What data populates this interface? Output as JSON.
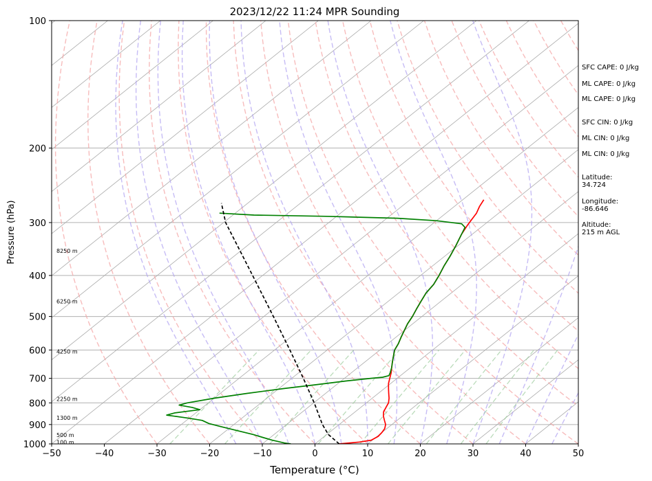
{
  "chart_data": {
    "type": "line",
    "title": "2023/12/22 11:24 MPR Sounding",
    "xlabel": "Temperature (°C)",
    "ylabel": "Pressure (hPa)",
    "xlim": [
      -50,
      50
    ],
    "ylim": [
      1000,
      100
    ],
    "yscale": "log",
    "skew": "skew-T log-P",
    "x_ticks": [
      "−50",
      "−40",
      "−30",
      "−20",
      "−10",
      "0",
      "10",
      "20",
      "30",
      "40",
      "50"
    ],
    "y_ticks": [
      {
        "p": 100,
        "label": "100"
      },
      {
        "p": 200,
        "label": "200"
      },
      {
        "p": 300,
        "label": "300"
      },
      {
        "p": 400,
        "label": "400"
      },
      {
        "p": 500,
        "label": "500"
      },
      {
        "p": 600,
        "label": "600"
      },
      {
        "p": 700,
        "label": "700"
      },
      {
        "p": 800,
        "label": "800"
      },
      {
        "p": 900,
        "label": "900"
      },
      {
        "p": 1000,
        "label": "1000"
      }
    ],
    "grid": true,
    "height_labels": [
      {
        "p": 350,
        "label": "8250 m"
      },
      {
        "p": 460,
        "label": "6250 m"
      },
      {
        "p": 605,
        "label": "4250 m"
      },
      {
        "p": 783,
        "label": "2250 m"
      },
      {
        "p": 867,
        "label": "1300 m"
      },
      {
        "p": 953,
        "label": "500 m"
      },
      {
        "p": 990,
        "label": "100 m"
      }
    ],
    "series": [
      {
        "color": "#ff0000",
        "points": [
          {
            "p": 265,
            "t": -26.0
          },
          {
            "p": 275,
            "t": -25.2
          },
          {
            "p": 285,
            "t": -24.2
          },
          {
            "p": 295,
            "t": -23.6
          },
          {
            "p": 305,
            "t": -23.0
          },
          {
            "p": 320,
            "t": -22.0
          },
          {
            "p": 340,
            "t": -20.4
          },
          {
            "p": 360,
            "t": -19.0
          },
          {
            "p": 380,
            "t": -17.8
          },
          {
            "p": 400,
            "t": -16.5
          },
          {
            "p": 420,
            "t": -15.4
          },
          {
            "p": 440,
            "t": -14.8
          },
          {
            "p": 460,
            "t": -13.8
          },
          {
            "p": 480,
            "t": -12.8
          },
          {
            "p": 500,
            "t": -11.8
          },
          {
            "p": 520,
            "t": -11.0
          },
          {
            "p": 540,
            "t": -10.0
          },
          {
            "p": 560,
            "t": -9.0
          },
          {
            "p": 580,
            "t": -8.0
          },
          {
            "p": 600,
            "t": -7.2
          },
          {
            "p": 620,
            "t": -6.0
          },
          {
            "p": 640,
            "t": -4.8
          },
          {
            "p": 660,
            "t": -3.6
          },
          {
            "p": 680,
            "t": -2.4
          },
          {
            "p": 700,
            "t": -1.4
          },
          {
            "p": 720,
            "t": -0.4
          },
          {
            "p": 740,
            "t": 0.8
          },
          {
            "p": 760,
            "t": 2.0
          },
          {
            "p": 780,
            "t": 3.2
          },
          {
            "p": 800,
            "t": 4.2
          },
          {
            "p": 820,
            "t": 4.8
          },
          {
            "p": 840,
            "t": 5.4
          },
          {
            "p": 860,
            "t": 6.4
          },
          {
            "p": 880,
            "t": 7.6
          },
          {
            "p": 900,
            "t": 8.8
          },
          {
            "p": 920,
            "t": 9.6
          },
          {
            "p": 940,
            "t": 10.0
          },
          {
            "p": 960,
            "t": 10.2
          },
          {
            "p": 980,
            "t": 9.8
          },
          {
            "p": 990,
            "t": 8.0
          },
          {
            "p": 1000,
            "t": 4.6
          }
        ]
      },
      {
        "color": "#008000",
        "points": [
          {
            "p": 285,
            "t": -73.0
          },
          {
            "p": 288,
            "t": -66.0
          },
          {
            "p": 290,
            "t": -52.0
          },
          {
            "p": 293,
            "t": -38.0
          },
          {
            "p": 297,
            "t": -30.0
          },
          {
            "p": 302,
            "t": -24.5
          },
          {
            "p": 308,
            "t": -23.0
          },
          {
            "p": 320,
            "t": -22.0
          },
          {
            "p": 340,
            "t": -20.4
          },
          {
            "p": 360,
            "t": -19.0
          },
          {
            "p": 380,
            "t": -17.8
          },
          {
            "p": 400,
            "t": -16.5
          },
          {
            "p": 420,
            "t": -15.4
          },
          {
            "p": 440,
            "t": -14.8
          },
          {
            "p": 460,
            "t": -13.8
          },
          {
            "p": 480,
            "t": -12.8
          },
          {
            "p": 500,
            "t": -11.8
          },
          {
            "p": 520,
            "t": -11.0
          },
          {
            "p": 540,
            "t": -10.0
          },
          {
            "p": 560,
            "t": -9.0
          },
          {
            "p": 580,
            "t": -8.0
          },
          {
            "p": 600,
            "t": -7.2
          },
          {
            "p": 620,
            "t": -6.0
          },
          {
            "p": 640,
            "t": -4.8
          },
          {
            "p": 660,
            "t": -3.6
          },
          {
            "p": 680,
            "t": -2.6
          },
          {
            "p": 690,
            "t": -2.2
          },
          {
            "p": 696,
            "t": -3.0
          },
          {
            "p": 700,
            "t": -5.0
          },
          {
            "p": 710,
            "t": -9.0
          },
          {
            "p": 725,
            "t": -14.0
          },
          {
            "p": 740,
            "t": -19.0
          },
          {
            "p": 760,
            "t": -25.0
          },
          {
            "p": 780,
            "t": -30.0
          },
          {
            "p": 800,
            "t": -34.0
          },
          {
            "p": 810,
            "t": -35.0
          },
          {
            "p": 820,
            "t": -32.0
          },
          {
            "p": 830,
            "t": -30.0
          },
          {
            "p": 845,
            "t": -34.0
          },
          {
            "p": 855,
            "t": -35.0
          },
          {
            "p": 870,
            "t": -30.0
          },
          {
            "p": 880,
            "t": -27.0
          },
          {
            "p": 895,
            "t": -25.0
          },
          {
            "p": 910,
            "t": -22.0
          },
          {
            "p": 930,
            "t": -18.0
          },
          {
            "p": 950,
            "t": -14.0
          },
          {
            "p": 965,
            "t": -11.5
          },
          {
            "p": 980,
            "t": -9.0
          },
          {
            "p": 995,
            "t": -6.0
          },
          {
            "p": 1000,
            "t": -4.6
          }
        ]
      },
      {
        "color": "#000000",
        "dashed": true,
        "points": [
          {
            "p": 1000,
            "t": 4.6
          },
          {
            "p": 950,
            "t": 0.3
          },
          {
            "p": 900,
            "t": -3.2
          },
          {
            "p": 800,
            "t": -9.9
          },
          {
            "p": 700,
            "t": -17.8
          },
          {
            "p": 600,
            "t": -27.1
          },
          {
            "p": 500,
            "t": -38.2
          },
          {
            "p": 400,
            "t": -51.9
          },
          {
            "p": 300,
            "t": -69.6
          },
          {
            "p": 270,
            "t": -75.0
          }
        ]
      }
    ],
    "annotations": [
      "SFC CAPE: 0 J/kg",
      "ML CAPE: 0 J/kg",
      "ML CAPE: 0 J/kg",
      "SFC CIN: 0 J/kg",
      "ML CIN: 0 J/kg",
      "ML CIN: 0 J/kg",
      "Latitude:\n34.724",
      "Longitude:\n-86.646",
      "Altitude:\n215 m AGL"
    ]
  }
}
